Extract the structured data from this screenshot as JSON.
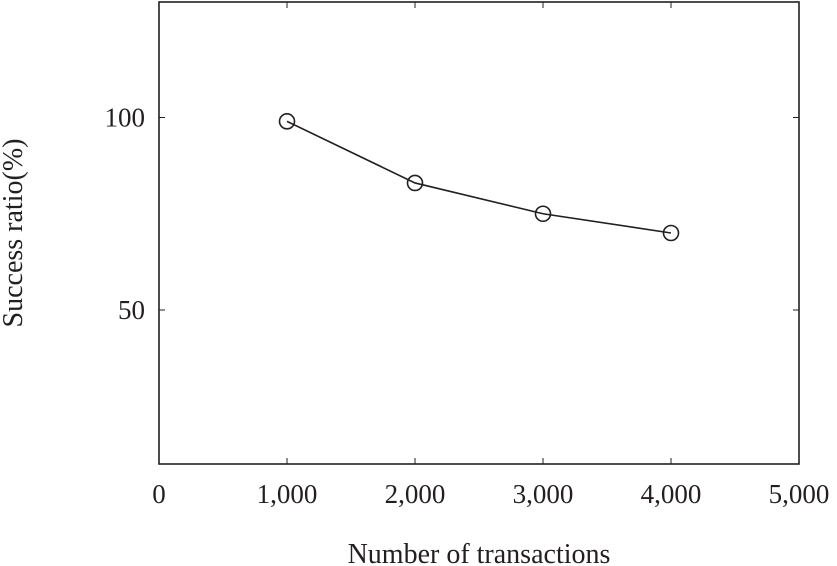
{
  "chart_data": {
    "type": "line",
    "title": "",
    "xlabel": "Number of transactions",
    "ylabel": "Success ratio(%)",
    "xlim": [
      0,
      5000
    ],
    "ylim": [
      10,
      130
    ],
    "xticks": [
      0,
      1000,
      2000,
      3000,
      4000,
      5000
    ],
    "xtick_labels": [
      "0",
      "1,000",
      "2,000",
      "3,000",
      "4,000",
      "5,000"
    ],
    "yticks": [
      50,
      100
    ],
    "ytick_labels": [
      "50",
      "100"
    ],
    "grid": false,
    "legend": "none",
    "series": [
      {
        "x": [
          1000,
          2000,
          3000,
          4000
        ],
        "y": [
          99,
          83,
          75,
          70
        ],
        "marker": "circle-open",
        "color": "#231f20"
      }
    ]
  }
}
